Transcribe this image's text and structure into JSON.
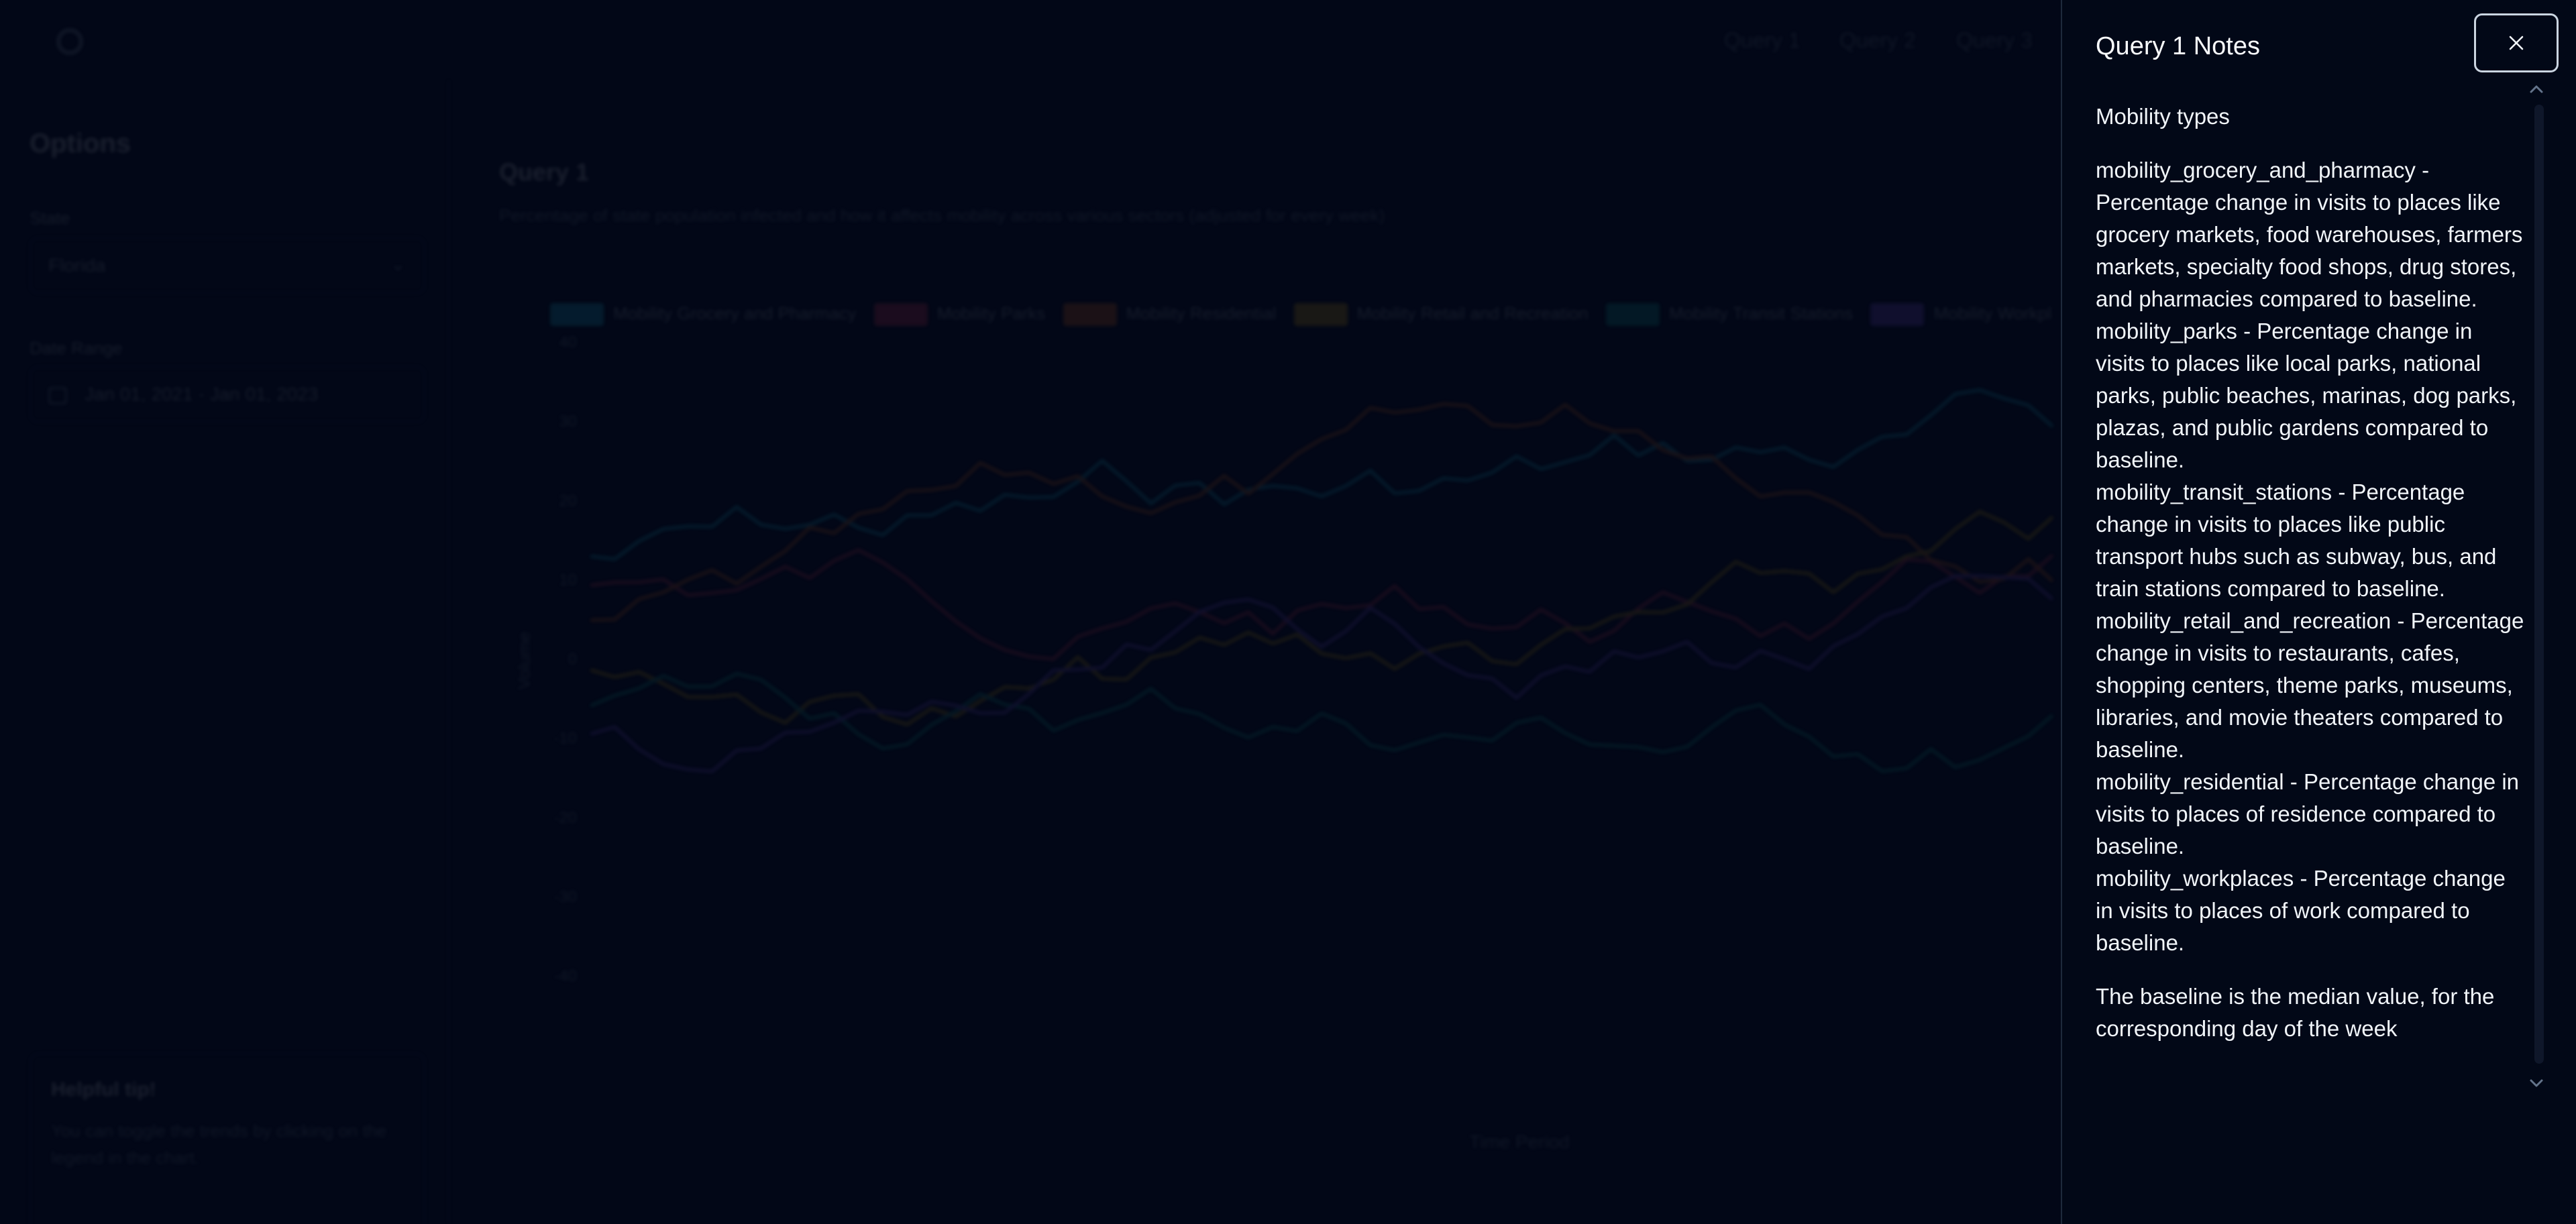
{
  "header": {
    "nav_links": [
      "Query 1",
      "Query 2",
      "Query 3"
    ]
  },
  "sidebar": {
    "heading": "Options",
    "state_label": "State",
    "state_value": "Florida",
    "date_range_label": "Date Range",
    "date_range_value": "Jan 01, 2021 - Jan 01, 2023",
    "tip_title": "Helpful tip!",
    "tip_text": "You can toggle the trends by clicking on the legend in the chart."
  },
  "main": {
    "title": "Query 1",
    "subtitle": "Percentage of state population infected and how it affects mobility across various sectors (adjusted for every week)"
  },
  "chart_data": {
    "type": "line",
    "series": [
      {
        "name": "Mobility Grocery and Pharmacy",
        "color": "#22d3ee"
      },
      {
        "name": "Mobility Parks",
        "color": "#f43f5e"
      },
      {
        "name": "Mobility Residential",
        "color": "#f97316"
      },
      {
        "name": "Mobility Retail and Recreation",
        "color": "#eab308"
      },
      {
        "name": "Mobility Transit Stations",
        "color": "#14b8a6"
      },
      {
        "name": "Mobility Workplaces",
        "color": "#8b5cf6"
      }
    ],
    "xlabel": "Time Period",
    "ylabel": "Volume",
    "y_ticks": [
      "40",
      "30",
      "20",
      "10",
      "0",
      "-10",
      "-20",
      "-30",
      "-40"
    ]
  },
  "drawer": {
    "title": "Query 1 Notes",
    "heading": "Mobility types",
    "types": [
      "mobility_grocery_and_pharmacy - Percentage change in visits to places like grocery markets, food warehouses, farmers markets, specialty food shops, drug stores, and pharmacies compared to baseline.",
      "mobility_parks - Percentage change in visits to places like local parks, national parks, public beaches, marinas, dog parks, plazas, and public gardens compared to baseline.",
      "mobility_transit_stations - Percentage change in visits to places like public transport hubs such as subway, bus, and train stations compared to baseline.",
      "mobility_retail_and_recreation - Percentage change in visits to restaurants, cafes, shopping centers, theme parks, museums, libraries, and movie theaters compared to baseline.",
      "mobility_residential - Percentage change in visits to places of residence compared to baseline.",
      "mobility_workplaces - Percentage change in visits to places of work compared to baseline."
    ],
    "footer": "The baseline is the median value, for the corresponding day of the week",
    "close_icon": "close-icon"
  },
  "colors": {
    "background": "#020817",
    "drawer_text": "#f1f5f9",
    "border": "#1e293b"
  }
}
